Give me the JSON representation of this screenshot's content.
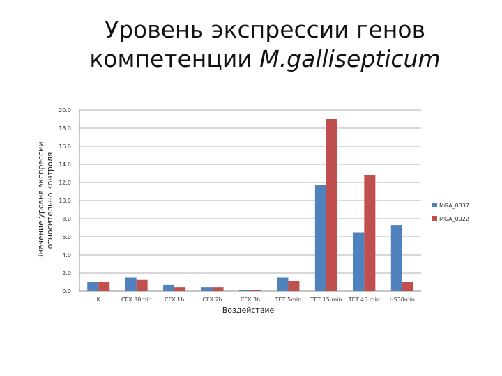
{
  "slide": {
    "title_line1": "Уровень экспрессии генов",
    "title_line2_prefix": "компетенции ",
    "title_line2_italic": "M.gallisepticum"
  },
  "chart_data": {
    "type": "bar",
    "categories": [
      "K",
      "CFX 30min",
      "CFX 1h",
      "CFX 2h",
      "CFX 3h",
      "TET 5min",
      "TET 15 min",
      "TET 45 min",
      "HS30min"
    ],
    "series": [
      {
        "name": "MGA_0337",
        "color": "#4F81BD",
        "values": [
          1.0,
          1.5,
          0.7,
          0.45,
          0.1,
          1.5,
          11.7,
          6.5,
          7.3
        ]
      },
      {
        "name": "MGA_0022",
        "color": "#C0504D",
        "values": [
          1.0,
          1.25,
          0.45,
          0.45,
          0.1,
          1.15,
          19.0,
          12.8,
          1.0
        ]
      }
    ],
    "xlabel": "Воздействие",
    "ylabel_line1": "Значение уровня экспрессии",
    "ylabel_line2": "относительно контроля",
    "ylim": [
      0,
      20
    ],
    "yticks": [
      "0.0",
      "2.0",
      "4.0",
      "6.0",
      "8.0",
      "10.0",
      "12.0",
      "14.0",
      "16.0",
      "18.0",
      "20.0"
    ],
    "grid": true,
    "legend_position": "right"
  }
}
